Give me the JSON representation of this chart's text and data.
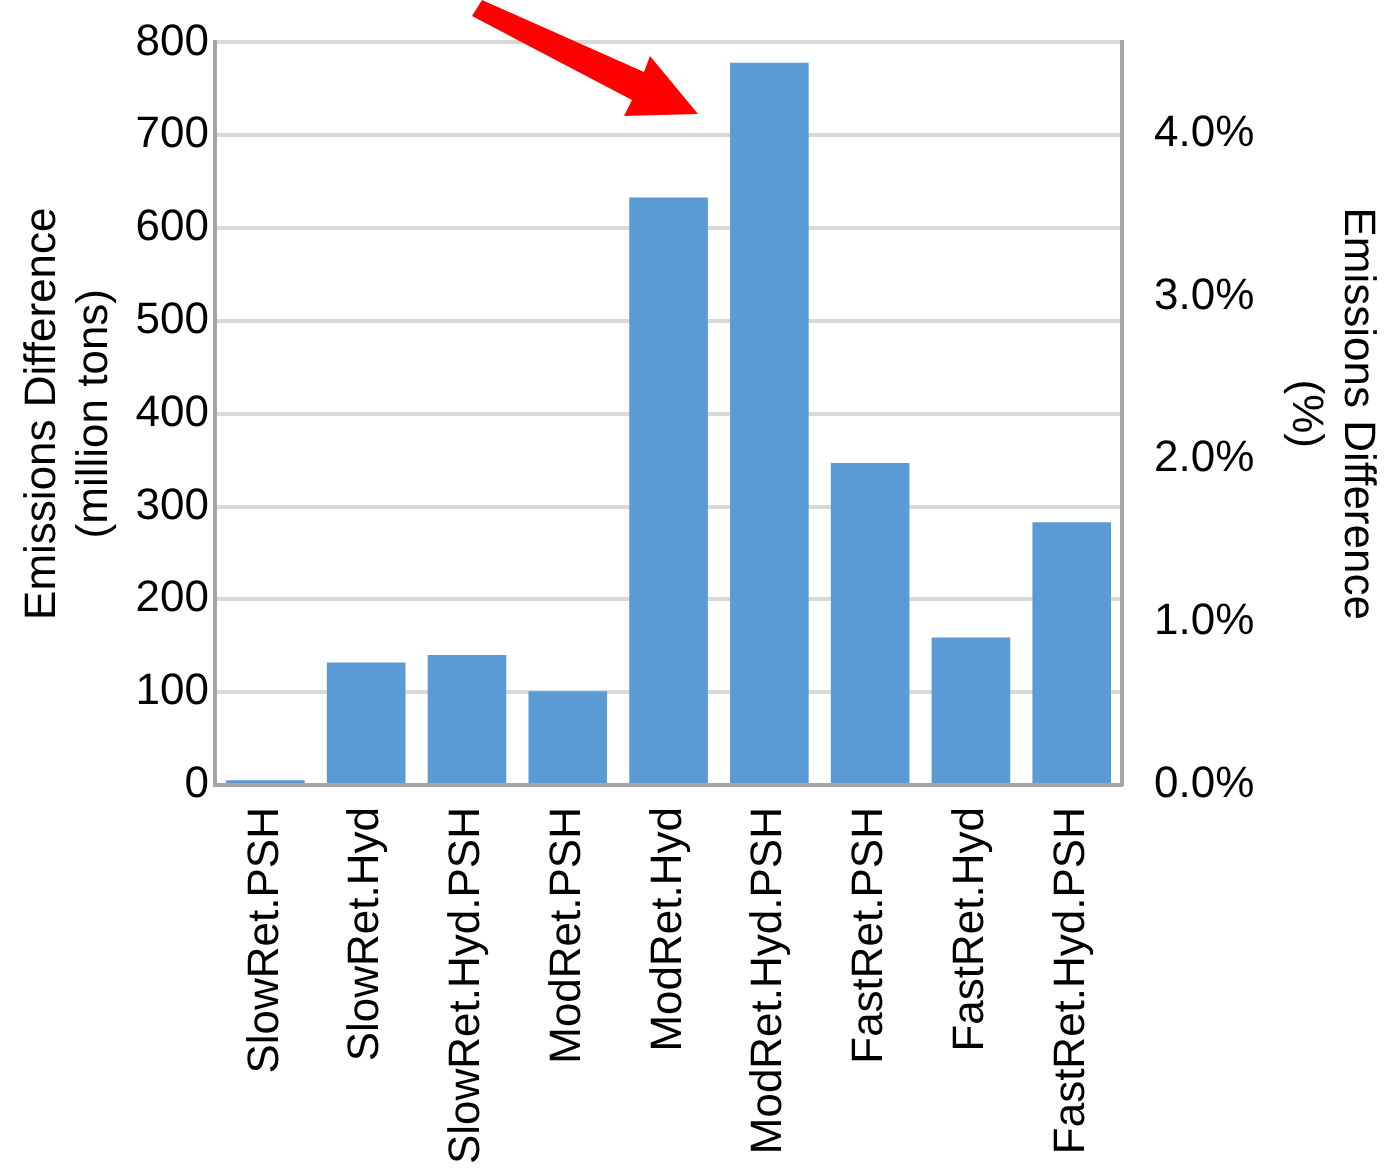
{
  "chart_data": {
    "type": "bar",
    "categories": [
      "SlowRet.PSH",
      "SlowRet.Hyd",
      "SlowRet.Hyd.PSH",
      "ModRet.PSH",
      "ModRet.Hyd",
      "ModRet.Hyd.PSH",
      "FastRet.PSH",
      "FastRet.Hyd",
      "FastRet.Hyd.PSH"
    ],
    "values": [
      5,
      132,
      140,
      101,
      633,
      778,
      347,
      159,
      283
    ],
    "color": "#5b9bd5",
    "ylabel": "Emissions Difference\n(million tons)",
    "y2label": "Emissions Difference\n(%)",
    "ylim": [
      0,
      800
    ],
    "yticks": [
      0,
      100,
      200,
      300,
      400,
      500,
      600,
      700,
      800
    ],
    "y2lim": [
      0,
      4.56
    ],
    "y2ticks": [
      {
        "value": 0,
        "label": "0.0%"
      },
      {
        "value": 1,
        "label": "1.0%"
      },
      {
        "value": 2,
        "label": "2.0%"
      },
      {
        "value": 3,
        "label": "3.0%"
      },
      {
        "value": 4,
        "label": "4.0%"
      }
    ],
    "grid": "y",
    "legend": false
  }
}
